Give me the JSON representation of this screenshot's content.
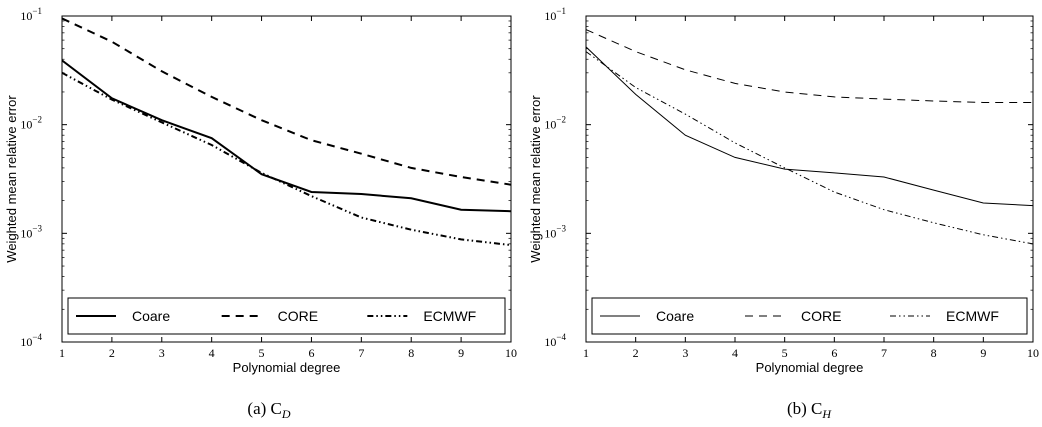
{
  "chart_data": [
    {
      "type": "line",
      "caption": "(a) C",
      "caption_sub": "D",
      "xlabel": "Polynomial degree",
      "ylabel": "Weighted mean relative error",
      "x": [
        1,
        2,
        3,
        4,
        5,
        6,
        7,
        8,
        9,
        10
      ],
      "xlim": [
        1,
        10
      ],
      "ylim": [
        0.0001,
        0.1
      ],
      "yscale": "log",
      "xticks": [
        "1",
        "2",
        "3",
        "4",
        "5",
        "6",
        "7",
        "8",
        "9",
        "10"
      ],
      "yticks": [
        {
          "base": "10",
          "exp": "−4",
          "value": 0.0001
        },
        {
          "base": "10",
          "exp": "−3",
          "value": 0.001
        },
        {
          "base": "10",
          "exp": "−2",
          "value": 0.01
        },
        {
          "base": "10",
          "exp": "−1",
          "value": 0.1
        }
      ],
      "legend_position": "bottom",
      "series": [
        {
          "name": "Coare",
          "style": "solid",
          "values": [
            0.039,
            0.0175,
            0.011,
            0.0075,
            0.0035,
            0.0024,
            0.0023,
            0.0021,
            0.00165,
            0.0016
          ]
        },
        {
          "name": "CORE",
          "style": "dashed",
          "values": [
            0.095,
            0.058,
            0.031,
            0.018,
            0.011,
            0.0072,
            0.0054,
            0.004,
            0.0033,
            0.0028
          ]
        },
        {
          "name": "ECMWF",
          "style": "dashdotdot",
          "values": [
            0.03,
            0.017,
            0.0105,
            0.0065,
            0.0036,
            0.0022,
            0.0014,
            0.00108,
            0.00088,
            0.00078
          ]
        }
      ]
    },
    {
      "type": "line",
      "caption": "(b) C",
      "caption_sub": "H",
      "xlabel": "Polynomial degree",
      "ylabel": "Weighted mean relative error",
      "x": [
        1,
        2,
        3,
        4,
        5,
        6,
        7,
        8,
        9,
        10
      ],
      "xlim": [
        1,
        10
      ],
      "ylim": [
        0.0001,
        0.1
      ],
      "yscale": "log",
      "xticks": [
        "1",
        "2",
        "3",
        "4",
        "5",
        "6",
        "7",
        "8",
        "9",
        "10"
      ],
      "yticks": [
        {
          "base": "10",
          "exp": "−4",
          "value": 0.0001
        },
        {
          "base": "10",
          "exp": "−3",
          "value": 0.001
        },
        {
          "base": "10",
          "exp": "−2",
          "value": 0.01
        },
        {
          "base": "10",
          "exp": "−1",
          "value": 0.1
        }
      ],
      "legend_position": "bottom",
      "series": [
        {
          "name": "Coare",
          "style": "solid",
          "values": [
            0.052,
            0.019,
            0.008,
            0.005,
            0.0039,
            0.0036,
            0.0033,
            0.0025,
            0.0019,
            0.0018
          ]
        },
        {
          "name": "CORE",
          "style": "dashed",
          "values": [
            0.075,
            0.047,
            0.032,
            0.024,
            0.02,
            0.018,
            0.0172,
            0.0165,
            0.016,
            0.016
          ]
        },
        {
          "name": "ECMWF",
          "style": "dashdotdot",
          "values": [
            0.047,
            0.022,
            0.0125,
            0.0068,
            0.004,
            0.0024,
            0.00165,
            0.00125,
            0.00097,
            0.0008
          ]
        }
      ]
    }
  ]
}
